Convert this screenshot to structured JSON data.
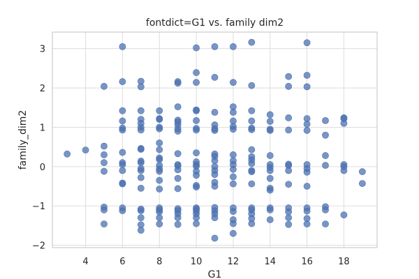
{
  "chart_data": {
    "type": "scatter",
    "title": "fontdict=G1 vs. family dim2",
    "xlabel": "G1",
    "ylabel": "family_dim2",
    "xlim": [
      2.2,
      19.8
    ],
    "ylim": [
      -2.06,
      3.42
    ],
    "xticks": [
      4,
      6,
      8,
      10,
      12,
      14,
      16,
      18
    ],
    "yticks": [
      -2,
      -1,
      0,
      1,
      2,
      3
    ],
    "grid": true,
    "point_color": "#4c72b0",
    "points": [
      [
        3,
        0.32
      ],
      [
        4,
        0.42
      ],
      [
        5,
        2.04
      ],
      [
        5,
        0.52
      ],
      [
        5,
        0.3
      ],
      [
        5,
        0.1
      ],
      [
        5,
        -0.12
      ],
      [
        5,
        -1.03
      ],
      [
        5,
        -1.1
      ],
      [
        5,
        -1.46
      ],
      [
        6,
        3.05
      ],
      [
        6,
        2.16
      ],
      [
        6,
        1.42
      ],
      [
        6,
        1.16
      ],
      [
        6,
        0.98
      ],
      [
        6,
        0.93
      ],
      [
        6,
        0.36
      ],
      [
        6,
        0.1
      ],
      [
        6,
        0.05
      ],
      [
        6,
        -0.1
      ],
      [
        6,
        -0.42
      ],
      [
        6,
        -0.44
      ],
      [
        6,
        -1.05
      ],
      [
        6,
        -1.12
      ],
      [
        7,
        2.17
      ],
      [
        7,
        2.03
      ],
      [
        7,
        1.42
      ],
      [
        7,
        1.2
      ],
      [
        7,
        1.1
      ],
      [
        7,
        1.0
      ],
      [
        7,
        0.93
      ],
      [
        7,
        0.46
      ],
      [
        7,
        0.44
      ],
      [
        7,
        0.14
      ],
      [
        7,
        0.1
      ],
      [
        7,
        -0.05
      ],
      [
        7,
        -0.1
      ],
      [
        7,
        -0.28
      ],
      [
        7,
        -0.55
      ],
      [
        7,
        -1.08
      ],
      [
        7,
        -1.12
      ],
      [
        7,
        -1.3
      ],
      [
        7,
        -1.48
      ],
      [
        7,
        -1.62
      ],
      [
        8,
        1.42
      ],
      [
        8,
        1.22
      ],
      [
        8,
        1.2
      ],
      [
        8,
        1.0
      ],
      [
        8,
        0.96
      ],
      [
        8,
        0.6
      ],
      [
        8,
        0.43
      ],
      [
        8,
        0.22
      ],
      [
        8,
        0.18
      ],
      [
        8,
        0.03
      ],
      [
        8,
        -0.06
      ],
      [
        8,
        -0.12
      ],
      [
        8,
        -0.35
      ],
      [
        8,
        -0.57
      ],
      [
        8,
        -1.05
      ],
      [
        8,
        -1.1
      ],
      [
        8,
        -1.15
      ],
      [
        8,
        -1.3
      ],
      [
        8,
        -1.46
      ],
      [
        9,
        2.16
      ],
      [
        9,
        2.12
      ],
      [
        9,
        1.52
      ],
      [
        9,
        1.18
      ],
      [
        9,
        1.13
      ],
      [
        9,
        1.06
      ],
      [
        9,
        0.96
      ],
      [
        9,
        0.9
      ],
      [
        9,
        0.33
      ],
      [
        9,
        0.05
      ],
      [
        9,
        0.02
      ],
      [
        9,
        -0.08
      ],
      [
        9,
        -0.3
      ],
      [
        9,
        -0.56
      ],
      [
        9,
        -1.07
      ],
      [
        9,
        -1.12
      ],
      [
        9,
        -1.2
      ],
      [
        9,
        -1.3
      ],
      [
        9,
        -1.47
      ],
      [
        10,
        3.02
      ],
      [
        10,
        2.39
      ],
      [
        10,
        2.14
      ],
      [
        10,
        1.44
      ],
      [
        10,
        1.42
      ],
      [
        10,
        1.17
      ],
      [
        10,
        0.97
      ],
      [
        10,
        0.93
      ],
      [
        10,
        0.35
      ],
      [
        10,
        0.12
      ],
      [
        10,
        0.05
      ],
      [
        10,
        0.01
      ],
      [
        10,
        -0.12
      ],
      [
        10,
        -0.22
      ],
      [
        10,
        -0.48
      ],
      [
        10,
        -0.52
      ],
      [
        10,
        -1.05
      ],
      [
        10,
        -1.08
      ],
      [
        10,
        -1.13
      ],
      [
        10,
        -1.2
      ],
      [
        10,
        -1.3
      ],
      [
        10,
        -1.45
      ],
      [
        11,
        3.05
      ],
      [
        11,
        2.27
      ],
      [
        11,
        1.38
      ],
      [
        11,
        1.06
      ],
      [
        11,
        0.96
      ],
      [
        11,
        0.92
      ],
      [
        11,
        0.32
      ],
      [
        11,
        0.26
      ],
      [
        11,
        0.15
      ],
      [
        11,
        0.0
      ],
      [
        11,
        -0.1
      ],
      [
        11,
        -0.2
      ],
      [
        11,
        -0.4
      ],
      [
        11,
        -0.5
      ],
      [
        11,
        -1.04
      ],
      [
        11,
        -1.12
      ],
      [
        11,
        -1.2
      ],
      [
        11,
        -1.3
      ],
      [
        11,
        -1.82
      ],
      [
        12,
        3.05
      ],
      [
        12,
        2.14
      ],
      [
        12,
        1.52
      ],
      [
        12,
        1.38
      ],
      [
        12,
        1.16
      ],
      [
        12,
        1.02
      ],
      [
        12,
        0.95
      ],
      [
        12,
        0.3
      ],
      [
        12,
        0.15
      ],
      [
        12,
        0.05
      ],
      [
        12,
        -0.07
      ],
      [
        12,
        -0.26
      ],
      [
        12,
        -0.44
      ],
      [
        12,
        -1.05
      ],
      [
        12,
        -1.14
      ],
      [
        12,
        -1.35
      ],
      [
        12,
        -1.45
      ],
      [
        12,
        -1.7
      ],
      [
        13,
        3.16
      ],
      [
        13,
        2.06
      ],
      [
        13,
        1.42
      ],
      [
        13,
        1.16
      ],
      [
        13,
        0.98
      ],
      [
        13,
        0.94
      ],
      [
        13,
        0.43
      ],
      [
        13,
        0.25
      ],
      [
        13,
        0.17
      ],
      [
        13,
        0.08
      ],
      [
        13,
        -0.1
      ],
      [
        13,
        -0.13
      ],
      [
        13,
        -0.44
      ],
      [
        13,
        -1.05
      ],
      [
        13,
        -1.1
      ],
      [
        13,
        -1.2
      ],
      [
        13,
        -1.32
      ],
      [
        13,
        -1.45
      ],
      [
        14,
        1.32
      ],
      [
        14,
        1.15
      ],
      [
        14,
        0.95
      ],
      [
        14,
        0.92
      ],
      [
        14,
        0.28
      ],
      [
        14,
        0.05
      ],
      [
        14,
        -0.02
      ],
      [
        14,
        -0.1
      ],
      [
        14,
        -0.3
      ],
      [
        14,
        -0.55
      ],
      [
        14,
        -0.6
      ],
      [
        14,
        -1.05
      ],
      [
        14,
        -1.1
      ],
      [
        14,
        -1.35
      ],
      [
        15,
        2.29
      ],
      [
        15,
        2.04
      ],
      [
        15,
        1.24
      ],
      [
        15,
        0.93
      ],
      [
        15,
        0.06
      ],
      [
        15,
        0.03
      ],
      [
        15,
        -0.1
      ],
      [
        15,
        -0.45
      ],
      [
        15,
        -1.05
      ],
      [
        15,
        -1.15
      ],
      [
        15,
        -1.3
      ],
      [
        15,
        -1.47
      ],
      [
        16,
        3.15
      ],
      [
        16,
        2.32
      ],
      [
        16,
        2.03
      ],
      [
        16,
        1.22
      ],
      [
        16,
        1.08
      ],
      [
        16,
        0.92
      ],
      [
        16,
        0.05
      ],
      [
        16,
        -0.05
      ],
      [
        16,
        -0.14
      ],
      [
        16,
        -0.5
      ],
      [
        16,
        -1.05
      ],
      [
        16,
        -1.13
      ],
      [
        16,
        -1.32
      ],
      [
        16,
        -1.46
      ],
      [
        17,
        1.17
      ],
      [
        17,
        0.8
      ],
      [
        17,
        0.28
      ],
      [
        17,
        0.03
      ],
      [
        17,
        -1.02
      ],
      [
        17,
        -1.1
      ],
      [
        17,
        -1.46
      ],
      [
        18,
        1.24
      ],
      [
        18,
        1.22
      ],
      [
        18,
        1.1
      ],
      [
        18,
        0.05
      ],
      [
        18,
        0.0
      ],
      [
        18,
        -0.1
      ],
      [
        18,
        -1.23
      ],
      [
        19,
        -0.13
      ],
      [
        19,
        -0.43
      ]
    ]
  }
}
